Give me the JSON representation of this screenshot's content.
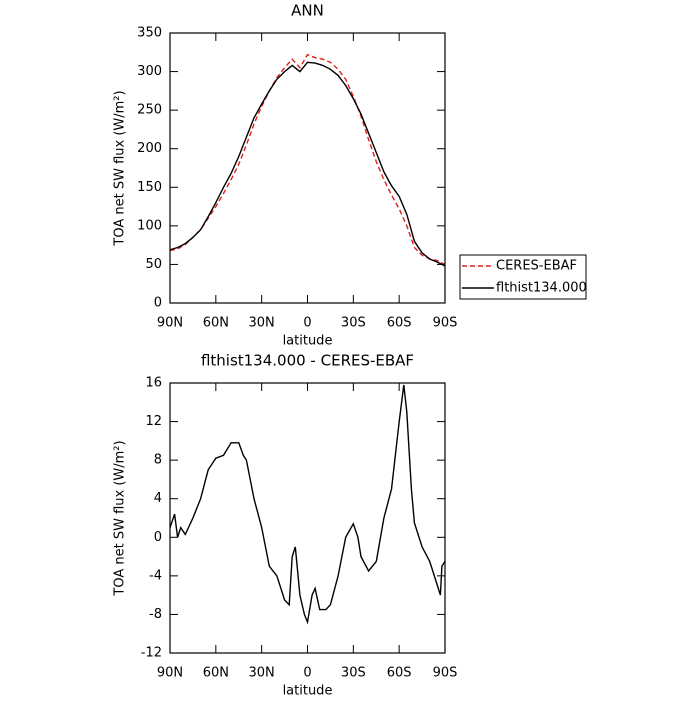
{
  "chart_data": [
    {
      "type": "line",
      "title": "ANN",
      "xlabel": "latitude",
      "ylabel": "TOA net SW flux (W/m²)",
      "x": [
        90,
        85,
        80,
        75,
        70,
        65,
        60,
        55,
        50,
        45,
        40,
        35,
        30,
        25,
        20,
        15,
        10,
        5,
        0,
        -5,
        -10,
        -15,
        -20,
        -25,
        -30,
        -35,
        -40,
        -45,
        -50,
        -55,
        -60,
        -65,
        -70,
        -75,
        -80,
        -85,
        -90
      ],
      "series": [
        {
          "name": "CERES-EBAF",
          "color": "#e0201b",
          "dash": true,
          "values": [
            68,
            70,
            76,
            85,
            95,
            110,
            125,
            142,
            160,
            180,
            205,
            232,
            255,
            275,
            292,
            305,
            316,
            305,
            322,
            318,
            316,
            312,
            303,
            290,
            268,
            242,
            212,
            183,
            160,
            140,
            122,
            100,
            72,
            62,
            57,
            55,
            50
          ]
        },
        {
          "name": "flthist134.000",
          "color": "#000000",
          "dash": false,
          "values": [
            69,
            72,
            77,
            85,
            95,
            112,
            130,
            150,
            168,
            190,
            215,
            240,
            258,
            275,
            290,
            300,
            308,
            300,
            312,
            311,
            308,
            303,
            295,
            282,
            265,
            245,
            220,
            195,
            170,
            152,
            138,
            115,
            80,
            65,
            57,
            53,
            48
          ]
        }
      ],
      "xlim": [
        90,
        -90
      ],
      "xticks": [
        {
          "value": 90,
          "label": "90N"
        },
        {
          "value": 60,
          "label": "60N"
        },
        {
          "value": 30,
          "label": "30N"
        },
        {
          "value": 0,
          "label": "0"
        },
        {
          "value": -30,
          "label": "30S"
        },
        {
          "value": -60,
          "label": "60S"
        },
        {
          "value": -90,
          "label": "90S"
        }
      ],
      "ylim": [
        0,
        350
      ],
      "yticks": [
        0,
        50,
        100,
        150,
        200,
        250,
        300,
        350
      ],
      "legend": "right"
    },
    {
      "type": "line",
      "title": "flthist134.000 - CERES-EBAF",
      "xlabel": "latitude",
      "ylabel": "TOA net SW flux (W/m²)",
      "x": [
        90,
        87,
        85,
        83,
        80,
        75,
        70,
        65,
        60,
        55,
        50,
        45,
        42,
        40,
        35,
        30,
        25,
        20,
        15,
        12,
        10,
        8,
        5,
        2,
        0,
        -3,
        -5,
        -8,
        -12,
        -15,
        -20,
        -25,
        -30,
        -33,
        -35,
        -40,
        -45,
        -50,
        -55,
        -60,
        -63,
        -65,
        -68,
        -70,
        -75,
        -80,
        -85,
        -87,
        -88,
        -90
      ],
      "series": [
        {
          "name": "flthist134.000 - CERES-EBAF",
          "color": "#000000",
          "dash": false,
          "values": [
            1,
            2.4,
            0,
            1,
            0.3,
            2,
            4,
            7,
            8.2,
            8.5,
            9.8,
            9.8,
            8.5,
            8,
            4,
            1,
            -3,
            -4,
            -6.5,
            -7,
            -2,
            -1,
            -6,
            -8,
            -8.8,
            -6,
            -5.3,
            -7.5,
            -7.5,
            -7,
            -4,
            0,
            1.4,
            0,
            -2,
            -3.5,
            -2.5,
            2,
            5,
            12,
            15.8,
            13,
            5,
            1.5,
            -1,
            -2.5,
            -5,
            -6,
            -3,
            -2.5
          ]
        }
      ],
      "xlim": [
        90,
        -90
      ],
      "xticks": [
        {
          "value": 90,
          "label": "90N"
        },
        {
          "value": 60,
          "label": "60N"
        },
        {
          "value": 30,
          "label": "30N"
        },
        {
          "value": 0,
          "label": "0"
        },
        {
          "value": -30,
          "label": "30S"
        },
        {
          "value": -60,
          "label": "60S"
        },
        {
          "value": -90,
          "label": "90S"
        }
      ],
      "ylim": [
        -12,
        16
      ],
      "yticks": [
        -12,
        -8,
        -4,
        0,
        4,
        8,
        12,
        16
      ]
    }
  ]
}
